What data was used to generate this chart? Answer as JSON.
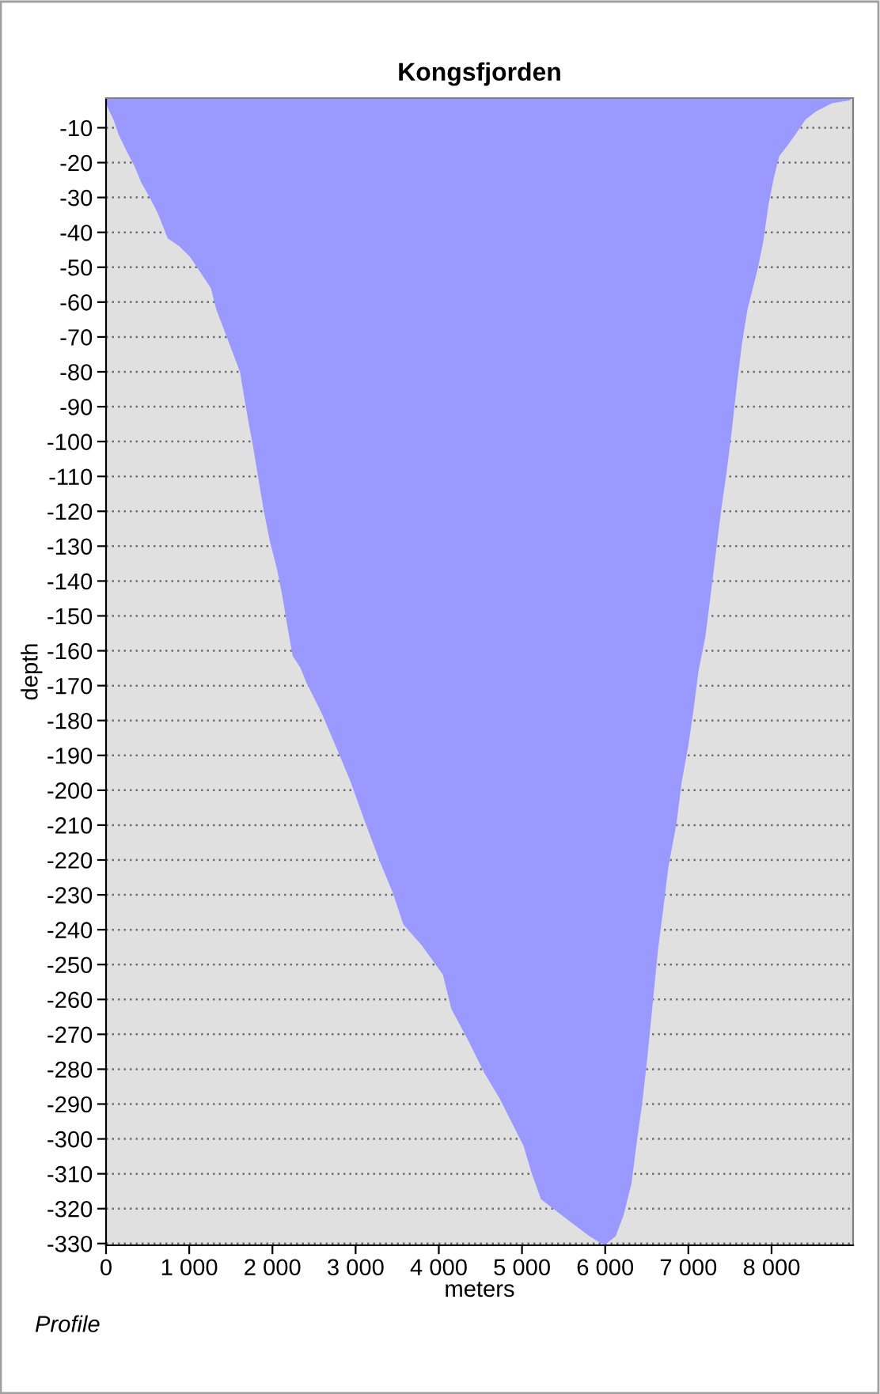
{
  "chart_data": {
    "type": "area",
    "title": "Kongsfjorden",
    "xlabel": "meters",
    "ylabel": "depth",
    "annotations": [
      "Profile"
    ],
    "x": [
      0,
      25,
      89,
      152,
      247,
      342,
      425,
      532,
      627,
      741,
      881,
      1008,
      1134,
      1261,
      1324,
      1419,
      1515,
      1610,
      1673,
      1717,
      1768,
      1831,
      1895,
      1971,
      2053,
      2117,
      2180,
      2243,
      2338,
      2402,
      2592,
      2782,
      2940,
      3099,
      3289,
      3447,
      3574,
      3796,
      4049,
      4151,
      4354,
      4544,
      4734,
      4892,
      5019,
      5114,
      5228,
      5431,
      5621,
      5811,
      5988,
      6127,
      6222,
      6317,
      6381,
      6444,
      6508,
      6571,
      6634,
      6698,
      6761,
      6856,
      6920,
      7001,
      7065,
      7122,
      7204,
      7268,
      7331,
      7394,
      7458,
      7521,
      7585,
      7648,
      7711,
      7775,
      7838,
      7902,
      7965,
      8029,
      8092,
      8187,
      8282,
      8409,
      8536,
      8726,
      8947
    ],
    "series": [
      {
        "color": "#9999ff",
        "values": [
          -3,
          -4.5,
          -7.6,
          -12,
          -16.7,
          -21,
          -25.8,
          -30.3,
          -34.8,
          -41.7,
          -44,
          -47,
          -51.5,
          -56,
          -62,
          -68,
          -74,
          -80,
          -89,
          -95,
          -101.5,
          -110.6,
          -119.7,
          -128.8,
          -136.4,
          -144,
          -153,
          -161.4,
          -165,
          -168.8,
          -177.9,
          -188.5,
          -197.6,
          -208.2,
          -220.3,
          -229.4,
          -238.5,
          -244.5,
          -252.9,
          -262.7,
          -271.8,
          -280.9,
          -288.5,
          -296,
          -302,
          -309.7,
          -317.3,
          -321,
          -324.5,
          -327.9,
          -330.5,
          -327.9,
          -321.8,
          -312.7,
          -300.6,
          -290,
          -276.4,
          -261.2,
          -246,
          -234,
          -221.8,
          -209.7,
          -197.6,
          -187,
          -176.4,
          -165.8,
          -156,
          -144,
          -131.8,
          -119.7,
          -109,
          -97,
          -83.3,
          -71.2,
          -62,
          -56,
          -50,
          -42.4,
          -31.8,
          -24.2,
          -18.2,
          -15.2,
          -12.1,
          -7.6,
          -5.3,
          -3,
          -2.1
        ]
      }
    ],
    "xlim": [
      0,
      8980
    ],
    "ylim": [
      -330.5,
      -1.5
    ],
    "xticks": [
      0,
      {
        "value": 1000,
        "label": "1 000"
      },
      {
        "value": 2000,
        "label": "2 000"
      },
      {
        "value": 3000,
        "label": "3 000"
      },
      {
        "value": 4000,
        "label": "4 000"
      },
      {
        "value": 5000,
        "label": "5 000"
      },
      {
        "value": 6000,
        "label": "6 000"
      },
      {
        "value": 7000,
        "label": "7 000"
      },
      {
        "value": 8000,
        "label": "8 000"
      }
    ],
    "yticks": [
      -10,
      -20,
      -30,
      -40,
      -50,
      -60,
      -70,
      -80,
      -90,
      -100,
      -110,
      -120,
      -130,
      -140,
      -150,
      -160,
      -170,
      -180,
      -190,
      -200,
      -210,
      -220,
      -230,
      -240,
      -250,
      -260,
      -270,
      -280,
      -290,
      -300,
      -310,
      -320,
      -330
    ],
    "grid": "y"
  }
}
